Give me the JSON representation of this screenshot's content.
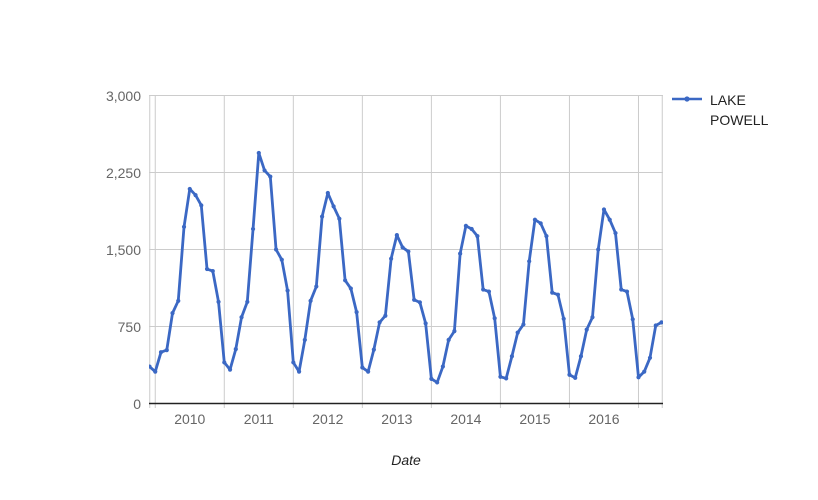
{
  "chart_data": {
    "type": "line",
    "title": "",
    "xlabel": "Date",
    "ylabel": "",
    "grid": true,
    "ylim": [
      0,
      3000
    ],
    "y_ticks": [
      0,
      750,
      1500,
      2250,
      3000
    ],
    "y_tick_labels": [
      "0",
      "750",
      "1,500",
      "2,250",
      "3,000"
    ],
    "x_tick_labels": [
      "2010",
      "2011",
      "2012",
      "2013",
      "2014",
      "2015",
      "2016"
    ],
    "legend": {
      "position": "right",
      "label": "LAKE POWELL"
    },
    "colors": {
      "series": "#3B68C4",
      "gridline": "#CCCCCC",
      "axis_line": "#222222",
      "tick_label": "#666666",
      "axis_title": "#222222",
      "legend_text": "#222222"
    },
    "series": [
      {
        "name": "LAKE POWELL",
        "color": "#3B68C4",
        "x": [
          "2009-12",
          "2010-01",
          "2010-02",
          "2010-03",
          "2010-04",
          "2010-05",
          "2010-06",
          "2010-07",
          "2010-08",
          "2010-09",
          "2010-10",
          "2010-11",
          "2010-12",
          "2011-01",
          "2011-02",
          "2011-03",
          "2011-04",
          "2011-05",
          "2011-06",
          "2011-07",
          "2011-08",
          "2011-09",
          "2011-10",
          "2011-11",
          "2011-12",
          "2012-01",
          "2012-02",
          "2012-03",
          "2012-04",
          "2012-05",
          "2012-06",
          "2012-07",
          "2012-08",
          "2012-09",
          "2012-10",
          "2012-11",
          "2012-12",
          "2013-01",
          "2013-02",
          "2013-03",
          "2013-04",
          "2013-05",
          "2013-06",
          "2013-07",
          "2013-08",
          "2013-09",
          "2013-10",
          "2013-11",
          "2013-12",
          "2014-01",
          "2014-02",
          "2014-03",
          "2014-04",
          "2014-05",
          "2014-06",
          "2014-07",
          "2014-08",
          "2014-09",
          "2014-10",
          "2014-11",
          "2014-12",
          "2015-01",
          "2015-02",
          "2015-03",
          "2015-04",
          "2015-05",
          "2015-06",
          "2015-07",
          "2015-08",
          "2015-09",
          "2015-10",
          "2015-11",
          "2015-12",
          "2016-01",
          "2016-02",
          "2016-03",
          "2016-04",
          "2016-05",
          "2016-06",
          "2016-07",
          "2016-08",
          "2016-09",
          "2016-10",
          "2016-11",
          "2016-12",
          "2017-01",
          "2017-02",
          "2017-03",
          "2017-04",
          "2017-05"
        ],
        "values": [
          360,
          310,
          500,
          520,
          880,
          1000,
          1720,
          2090,
          2030,
          1930,
          1310,
          1290,
          990,
          400,
          330,
          530,
          840,
          990,
          1700,
          2440,
          2270,
          2210,
          1500,
          1400,
          1100,
          400,
          310,
          620,
          1000,
          1140,
          1820,
          2050,
          1920,
          1800,
          1200,
          1120,
          890,
          350,
          310,
          525,
          790,
          855,
          1410,
          1640,
          1520,
          1480,
          1010,
          985,
          780,
          240,
          205,
          360,
          620,
          705,
          1460,
          1730,
          1700,
          1630,
          1110,
          1090,
          830,
          260,
          245,
          460,
          690,
          770,
          1385,
          1790,
          1755,
          1630,
          1080,
          1060,
          825,
          280,
          250,
          460,
          720,
          840,
          1500,
          1890,
          1790,
          1660,
          1110,
          1090,
          820,
          255,
          310,
          445,
          760,
          790
        ]
      }
    ]
  }
}
